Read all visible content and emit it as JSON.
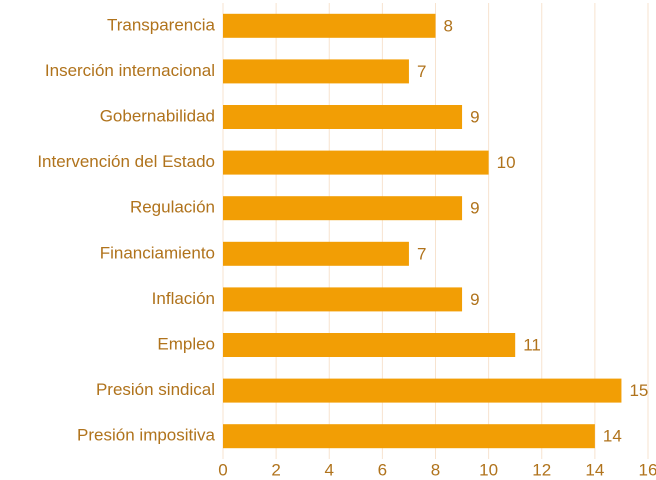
{
  "chart_data": {
    "type": "barh",
    "categories": [
      "Transparencia",
      "Inserción internacional",
      "Gobernabilidad",
      "Intervención del Estado",
      "Regulación",
      "Financiamiento",
      "Inflación",
      "Empleo",
      "Presión sindical",
      "Presión impositiva"
    ],
    "values": [
      8,
      7,
      9,
      10,
      9,
      7,
      9,
      11,
      15,
      14
    ],
    "color": "#f29e05",
    "xlim": [
      0,
      16
    ],
    "xticks": [
      0,
      2,
      4,
      6,
      8,
      10,
      12,
      14,
      16
    ],
    "grid": true
  }
}
